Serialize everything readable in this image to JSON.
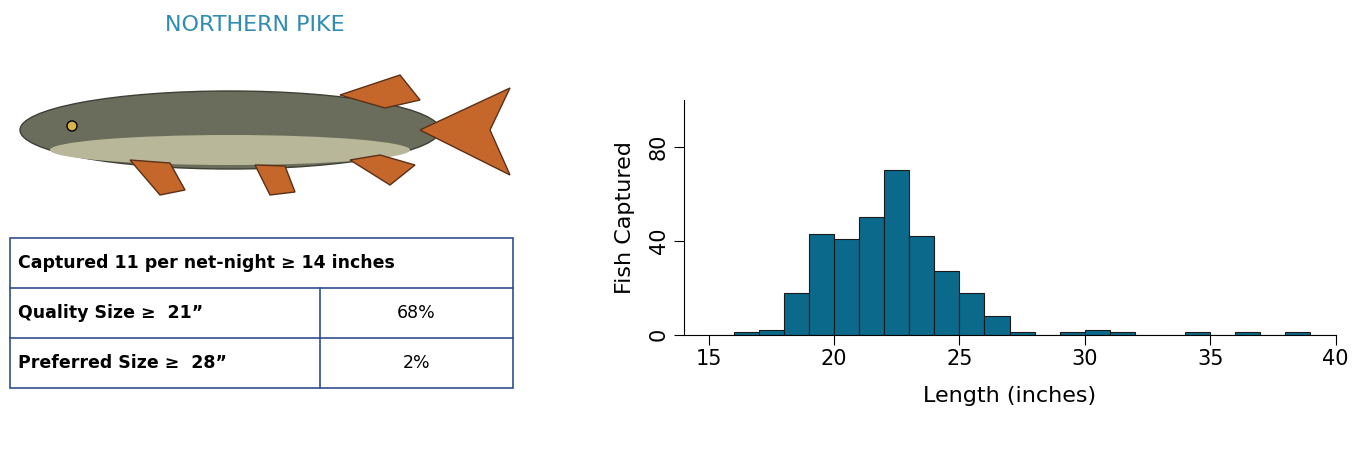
{
  "header": {
    "title": "NORTHERN PIKE"
  },
  "table": {
    "rows": [
      [
        "Captured 11 per net-night ≥ 14 inches"
      ],
      [
        "Quality Size ≥  21”",
        "68%"
      ],
      [
        "Preferred Size ≥  28”",
        "2%"
      ]
    ]
  },
  "chart_data": {
    "type": "histogram",
    "x_label": "Length (inches)",
    "y_label": "Fish Captured",
    "bins": [
      15,
      16,
      17,
      18,
      19,
      20,
      21,
      22,
      23,
      24,
      25,
      26,
      27,
      28,
      29,
      30,
      31,
      32,
      33,
      34,
      35,
      36,
      37,
      38,
      39,
      40
    ],
    "values": [
      0,
      1,
      2,
      18,
      43,
      41,
      50,
      70,
      42,
      27,
      18,
      8,
      1,
      0,
      1,
      2,
      1,
      0,
      0,
      1,
      0,
      1,
      0,
      1,
      0
    ],
    "color": "#0b6a8c",
    "xlim": [
      14,
      40
    ],
    "ylim": [
      0,
      100
    ],
    "xticks": [
      15,
      20,
      25,
      30,
      35,
      40
    ],
    "yticks": [
      0,
      40,
      80
    ]
  }
}
